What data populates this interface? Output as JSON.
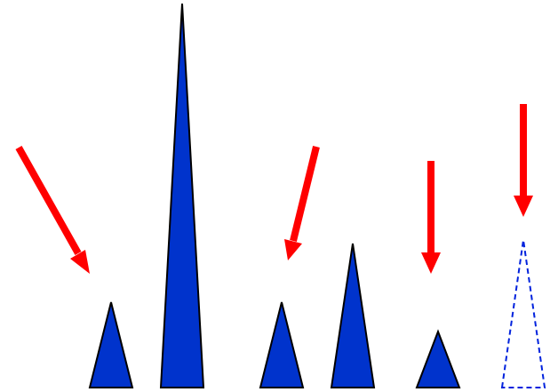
{
  "colors": {
    "background": "#ffffff",
    "shape_fill": "#0033cc",
    "shape_outline": "#000000",
    "dashed_outline": "#0022dd",
    "arrow": "#ff0000"
  },
  "elements": {
    "solid_triangles": [
      {
        "name": "triangle-short-1"
      },
      {
        "name": "triangle-tall"
      },
      {
        "name": "triangle-short-2"
      },
      {
        "name": "triangle-medium"
      },
      {
        "name": "triangle-small"
      }
    ],
    "dashed_triangles": [
      {
        "name": "triangle-dashed-outline"
      }
    ],
    "arrows": [
      {
        "name": "arrow-diagonal-left"
      },
      {
        "name": "arrow-diagonal-middle"
      },
      {
        "name": "arrow-vertical-right"
      },
      {
        "name": "arrow-vertical-far-right"
      }
    ]
  }
}
